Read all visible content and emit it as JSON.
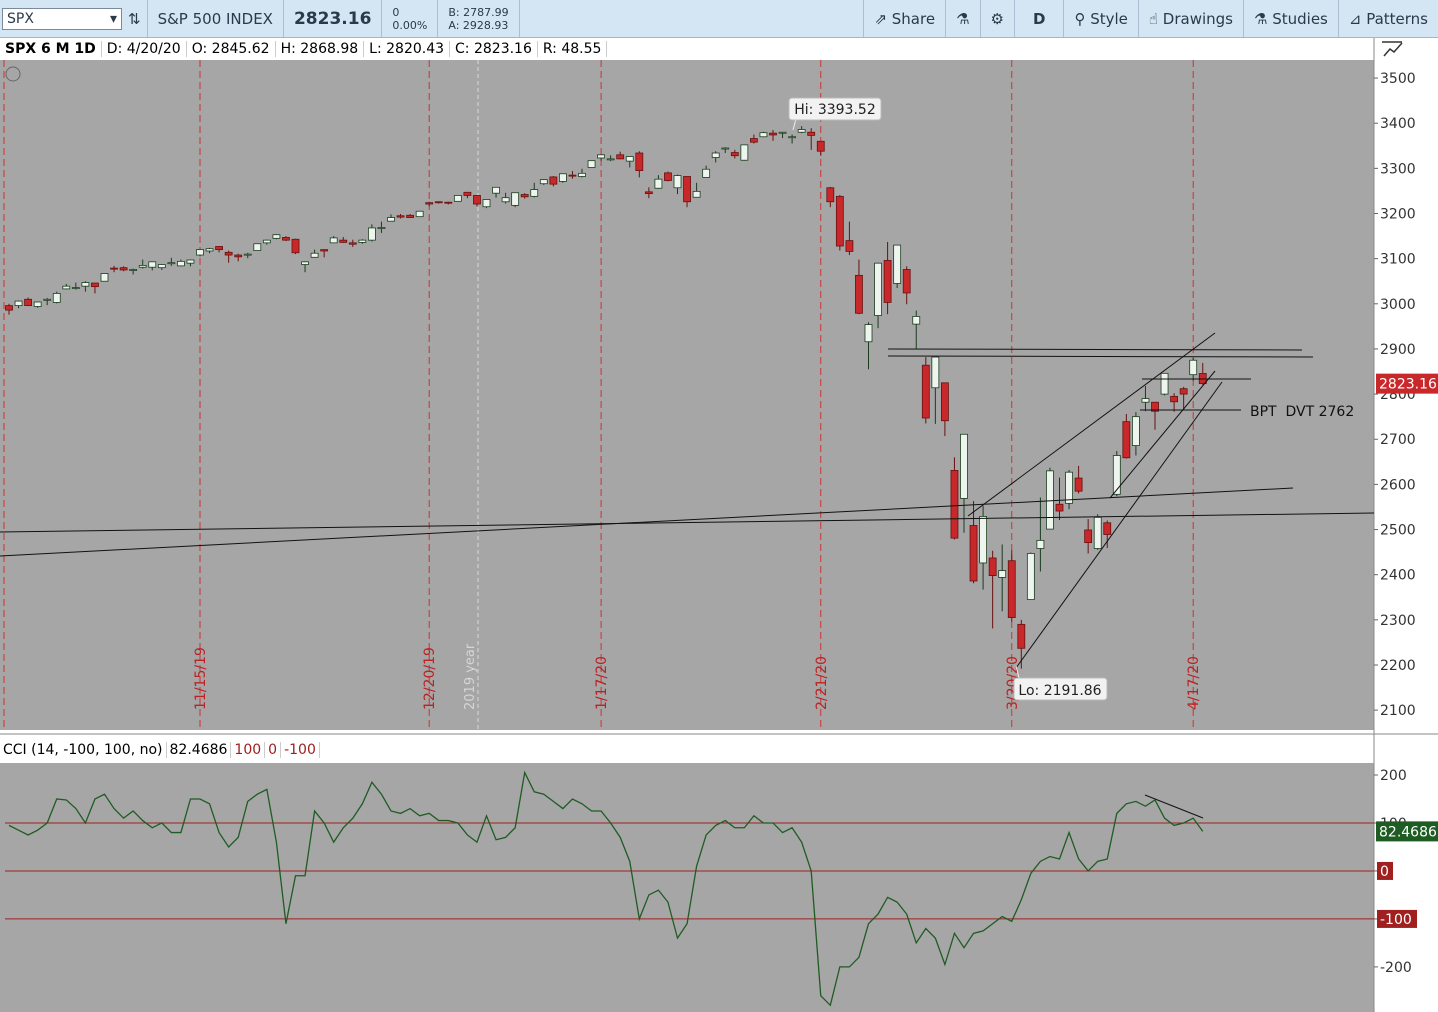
{
  "toolbar": {
    "symbol": "SPX",
    "description": "S&P 500 INDEX",
    "last": "2823.16",
    "change": "0",
    "change_pct": "0.00%",
    "bid": "B: 2787.99",
    "ask": "A: 2928.93",
    "share": "Share",
    "aggregation": "D",
    "style": "Style",
    "drawings": "Drawings",
    "studies": "Studies",
    "patterns": "Patterns"
  },
  "info_bar": {
    "title": "SPX 6 M 1D",
    "date": "D: 4/20/20",
    "open": "O: 2845.62",
    "high": "H: 2868.98",
    "low": "L: 2820.43",
    "close": "C: 2823.16",
    "range": "R: 48.55"
  },
  "chart_data": [
    {
      "type": "candlestick",
      "up_color": "#eef5ee",
      "down_color": "#c8282a",
      "ylim": [
        2056,
        3540
      ],
      "yticks": [
        2100,
        2200,
        2300,
        2400,
        2500,
        2600,
        2700,
        2800,
        2900,
        3000,
        3100,
        3200,
        3300,
        3400,
        3500
      ],
      "last_value": 2823.16,
      "year_label": "2019 year",
      "annotations": {
        "high": "Hi: 3393.52",
        "low": "Lo: 2191.86",
        "note": "BPT  DVT 2762"
      },
      "categories": [
        null,
        null,
        null,
        null,
        null,
        null,
        null,
        null,
        null,
        null,
        null,
        null,
        null,
        null,
        null,
        null,
        null,
        null,
        null,
        null,
        "11/15/19",
        null,
        null,
        null,
        null,
        null,
        null,
        null,
        null,
        null,
        null,
        null,
        null,
        null,
        null,
        null,
        null,
        null,
        null,
        null,
        null,
        null,
        null,
        null,
        "12/20/19",
        null,
        null,
        null,
        null,
        null,
        null,
        null,
        null,
        null,
        null,
        null,
        null,
        null,
        null,
        null,
        null,
        null,
        "1/17/20",
        null,
        null,
        null,
        null,
        null,
        null,
        null,
        null,
        null,
        null,
        null,
        null,
        null,
        null,
        null,
        null,
        null,
        null,
        null,
        null,
        null,
        null,
        "2/21/20",
        null,
        null,
        null,
        null,
        null,
        null,
        null,
        null,
        null,
        null,
        null,
        null,
        null,
        null,
        null,
        null,
        null,
        null,
        null,
        "3/20/20",
        null,
        null,
        null,
        null,
        null,
        null,
        null,
        null,
        null,
        null,
        null,
        null,
        null,
        null,
        null,
        null,
        null,
        null,
        "4/17/20",
        null
      ],
      "ohlc": [
        [
          2996,
          3000,
          2976,
          2986
        ],
        [
          2996,
          3007,
          2990,
          3006
        ],
        [
          3010,
          3014,
          2995,
          2996
        ],
        [
          2994,
          3005,
          2991,
          3004
        ],
        [
          3009,
          3013,
          2997,
          3010
        ],
        [
          3003,
          3027,
          3001,
          3023
        ],
        [
          3033,
          3044,
          3032,
          3039
        ],
        [
          3036,
          3047,
          3031,
          3036
        ],
        [
          3039,
          3050,
          3027,
          3047
        ],
        [
          3046,
          3046,
          3023,
          3038
        ],
        [
          3050,
          3067,
          3050,
          3067
        ],
        [
          3079,
          3084,
          3070,
          3078
        ],
        [
          3080,
          3083,
          3072,
          3075
        ],
        [
          3075,
          3078,
          3065,
          3076
        ],
        [
          3081,
          3098,
          3078,
          3085
        ],
        [
          3081,
          3094,
          3074,
          3093
        ],
        [
          3080,
          3088,
          3075,
          3087
        ],
        [
          3090,
          3102,
          3084,
          3091
        ],
        [
          3084,
          3098,
          3083,
          3094
        ],
        [
          3090,
          3098,
          3083,
          3097
        ],
        [
          3108,
          3120,
          3105,
          3120
        ],
        [
          3117,
          3124,
          3112,
          3122
        ],
        [
          3127,
          3128,
          3114,
          3120
        ],
        [
          3114,
          3118,
          3091,
          3108
        ],
        [
          3108,
          3111,
          3094,
          3104
        ],
        [
          3108,
          3113,
          3101,
          3110
        ],
        [
          3118,
          3133,
          3118,
          3133
        ],
        [
          3135,
          3142,
          3131,
          3141
        ],
        [
          3145,
          3154,
          3143,
          3153
        ],
        [
          3147,
          3150,
          3139,
          3141
        ],
        [
          3143,
          3144,
          3110,
          3113
        ],
        [
          3087,
          3094,
          3070,
          3093
        ],
        [
          3103,
          3120,
          3103,
          3112
        ],
        [
          3120,
          3120,
          3103,
          3117
        ],
        [
          3135,
          3150,
          3135,
          3146
        ],
        [
          3141,
          3148,
          3135,
          3136
        ],
        [
          3135,
          3142,
          3126,
          3132
        ],
        [
          3136,
          3143,
          3133,
          3141
        ],
        [
          3141,
          3176,
          3138,
          3168
        ],
        [
          3167,
          3182,
          3157,
          3169
        ],
        [
          3183,
          3198,
          3183,
          3191
        ],
        [
          3195,
          3199,
          3189,
          3192
        ],
        [
          3196,
          3199,
          3190,
          3191
        ],
        [
          3193,
          3206,
          3192,
          3205
        ],
        [
          3224,
          3226,
          3216,
          3221
        ],
        [
          3226,
          3227,
          3222,
          3224
        ],
        [
          3225,
          3226,
          3220,
          3223
        ],
        [
          3227,
          3240,
          3227,
          3240
        ],
        [
          3247,
          3247,
          3234,
          3240
        ],
        [
          3240,
          3240,
          3216,
          3221
        ],
        [
          3215,
          3231,
          3212,
          3231
        ],
        [
          3245,
          3258,
          3235,
          3258
        ],
        [
          3226,
          3246,
          3222,
          3235
        ],
        [
          3218,
          3246,
          3214,
          3246
        ],
        [
          3242,
          3245,
          3233,
          3237
        ],
        [
          3238,
          3268,
          3236,
          3253
        ],
        [
          3266,
          3276,
          3263,
          3275
        ],
        [
          3281,
          3283,
          3260,
          3265
        ],
        [
          3271,
          3288,
          3268,
          3288
        ],
        [
          3285,
          3294,
          3277,
          3283
        ],
        [
          3282,
          3299,
          3280,
          3289
        ],
        [
          3302,
          3317,
          3302,
          3317
        ],
        [
          3323,
          3330,
          3317,
          3330
        ],
        [
          3321,
          3329,
          3316,
          3321
        ],
        [
          3330,
          3337,
          3320,
          3321
        ],
        [
          3316,
          3326,
          3302,
          3326
        ],
        [
          3334,
          3338,
          3280,
          3295
        ],
        [
          3248,
          3258,
          3234,
          3244
        ],
        [
          3256,
          3285,
          3255,
          3276
        ],
        [
          3290,
          3293,
          3271,
          3273
        ],
        [
          3257,
          3286,
          3243,
          3284
        ],
        [
          3282,
          3282,
          3214,
          3226
        ],
        [
          3236,
          3268,
          3236,
          3249
        ],
        [
          3280,
          3306,
          3280,
          3298
        ],
        [
          3324,
          3338,
          3313,
          3334
        ],
        [
          3344,
          3347,
          3334,
          3345
        ],
        [
          3335,
          3341,
          3322,
          3328
        ],
        [
          3318,
          3352,
          3317,
          3352
        ],
        [
          3366,
          3375,
          3355,
          3358
        ],
        [
          3370,
          3381,
          3369,
          3379
        ],
        [
          3378,
          3385,
          3361,
          3374
        ],
        [
          3378,
          3381,
          3367,
          3380
        ],
        [
          3369,
          3375,
          3355,
          3370
        ],
        [
          3380,
          3393.52,
          3378,
          3386
        ],
        [
          3380,
          3389,
          3341,
          3373
        ],
        [
          3360,
          3360,
          3328,
          3338
        ],
        [
          3257,
          3259,
          3214,
          3226
        ],
        [
          3238,
          3241,
          3118,
          3128
        ],
        [
          3140,
          3182,
          3108,
          3116
        ],
        [
          3063,
          3098,
          2977,
          2979
        ],
        [
          2916,
          2959,
          2855,
          2954
        ],
        [
          2974,
          3091,
          2946,
          3090
        ],
        [
          3096,
          3137,
          2977,
          3003
        ],
        [
          3045,
          3130,
          3035,
          3130
        ],
        [
          3076,
          3083,
          2999,
          3024
        ],
        [
          2955,
          2985,
          2901,
          2972
        ],
        [
          2864,
          2882,
          2735,
          2747
        ],
        [
          2814,
          2882,
          2734,
          2882
        ],
        [
          2825,
          2825,
          2707,
          2741
        ],
        [
          2631,
          2660,
          2478,
          2481
        ],
        [
          2569,
          2711,
          2493,
          2711
        ],
        [
          2509,
          2563,
          2381,
          2386
        ],
        [
          2426,
          2553,
          2367,
          2529
        ],
        [
          2437,
          2453,
          2281,
          2398
        ],
        [
          2394,
          2467,
          2319,
          2409
        ],
        [
          2431,
          2454,
          2296,
          2305
        ],
        [
          2290,
          2300,
          2191.86,
          2237
        ],
        [
          2345,
          2449,
          2345,
          2447
        ],
        [
          2458,
          2571,
          2407,
          2476
        ],
        [
          2501,
          2637,
          2500,
          2630
        ],
        [
          2556,
          2615,
          2521,
          2541
        ],
        [
          2558,
          2632,
          2545,
          2627
        ],
        [
          2614,
          2641,
          2580,
          2585
        ],
        [
          2499,
          2523,
          2447,
          2471
        ],
        [
          2458,
          2534,
          2455,
          2527
        ],
        [
          2515,
          2520,
          2459,
          2489
        ],
        [
          2578,
          2674,
          2574,
          2664
        ],
        [
          2739,
          2756,
          2657,
          2659
        ],
        [
          2686,
          2760,
          2664,
          2750
        ],
        [
          2782,
          2818,
          2762,
          2790
        ],
        [
          2782,
          2782,
          2721,
          2762
        ],
        [
          2800,
          2845,
          2797,
          2846
        ],
        [
          2795,
          2802,
          2761,
          2783
        ],
        [
          2812,
          2816,
          2765,
          2800
        ],
        [
          2843,
          2880,
          2830,
          2875
        ],
        [
          2845.62,
          2868.98,
          2820.43,
          2823.16
        ]
      ]
    },
    {
      "type": "line",
      "title": "CCI (14, -100, 100, no)",
      "color": "#1f5c23",
      "level_color": "#a02020",
      "ylim": [
        -294,
        225
      ],
      "yticks": [
        200,
        100,
        0,
        -100,
        -200
      ],
      "levels": [
        100,
        0,
        -100
      ],
      "values": [
        95,
        85,
        75,
        85,
        100,
        150,
        148,
        130,
        100,
        150,
        160,
        130,
        110,
        125,
        105,
        90,
        100,
        80,
        80,
        150,
        150,
        140,
        80,
        50,
        70,
        145,
        160,
        170,
        60,
        -110,
        -10,
        -10,
        125,
        100,
        60,
        90,
        110,
        140,
        185,
        160,
        125,
        120,
        130,
        115,
        120,
        105,
        105,
        100,
        75,
        60,
        115,
        65,
        70,
        90,
        205,
        165,
        160,
        145,
        130,
        150,
        140,
        125,
        125,
        100,
        70,
        20,
        -100,
        -50,
        -40,
        -65,
        -140,
        -110,
        10,
        75,
        95,
        105,
        90,
        90,
        115,
        100,
        100,
        80,
        90,
        60,
        0,
        -260,
        -280,
        -200,
        -200,
        -180,
        -110,
        -90,
        -55,
        -65,
        -90,
        -150,
        -120,
        -140,
        -195,
        -130,
        -160,
        -130,
        -125,
        -110,
        -95,
        -105,
        -60,
        -5,
        20,
        30,
        25,
        80,
        25,
        0,
        20,
        25,
        120,
        140,
        145,
        135,
        148,
        110,
        95,
        100,
        110,
        82.4686
      ]
    }
  ]
}
